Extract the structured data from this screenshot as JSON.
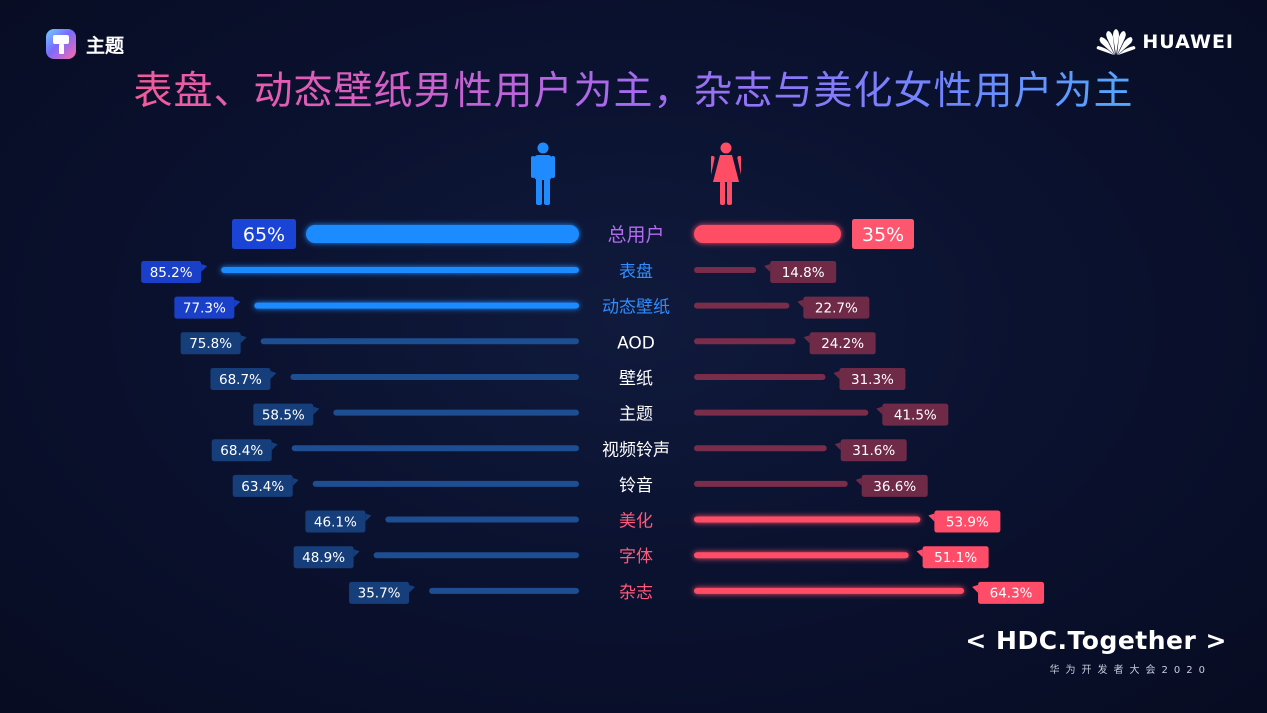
{
  "header": {
    "app_name": "主题",
    "brand_name": "HUAWEI",
    "title": "表盘、动态壁纸男性用户为主，杂志与美化女性用户为主"
  },
  "footer": {
    "tagline": "< HDC.Together >",
    "subtitle": "华为开发者大会2020"
  },
  "colors": {
    "male_strong": "#1f8bff",
    "male_dim": "#1d4e92",
    "female_strong": "#ff4d66",
    "female_dim": "#7a2d4a",
    "label_male": "#2f8dff",
    "label_female": "#ff5a7a",
    "label_neutral": "#ffffff",
    "label_total": "#b36bf0"
  },
  "icons": {
    "male": "male-person-icon",
    "female": "female-person-icon"
  },
  "chart_data": {
    "type": "bar",
    "layout": "diverging",
    "categories": [
      "总用户",
      "表盘",
      "动态壁纸",
      "AOD",
      "壁纸",
      "主题",
      "视频铃声",
      "铃音",
      "美化",
      "字体",
      "杂志"
    ],
    "value_labels": {
      "male": [
        "65%",
        "85.2%",
        "77.3%",
        "75.8%",
        "68.7%",
        "58.5%",
        "68.4%",
        "63.4%",
        "46.1%",
        "48.9%",
        "35.7%"
      ],
      "female": [
        "35%",
        "14.8%",
        "22.7%",
        "24.2%",
        "31.3%",
        "41.5%",
        "31.6%",
        "36.6%",
        "53.9%",
        "51.1%",
        "64.3%"
      ]
    },
    "series": [
      {
        "values": [
          65,
          85.2,
          77.3,
          75.8,
          68.7,
          58.5,
          68.4,
          63.4,
          46.1,
          48.9,
          35.7
        ]
      },
      {
        "values": [
          35,
          14.8,
          22.7,
          24.2,
          31.3,
          41.5,
          31.6,
          36.6,
          53.9,
          51.1,
          64.3
        ]
      }
    ],
    "category_emphasis": [
      "total",
      "male",
      "male",
      "neutral",
      "neutral",
      "neutral",
      "neutral",
      "neutral",
      "female",
      "female",
      "female"
    ],
    "xlim": [
      0,
      100
    ]
  }
}
